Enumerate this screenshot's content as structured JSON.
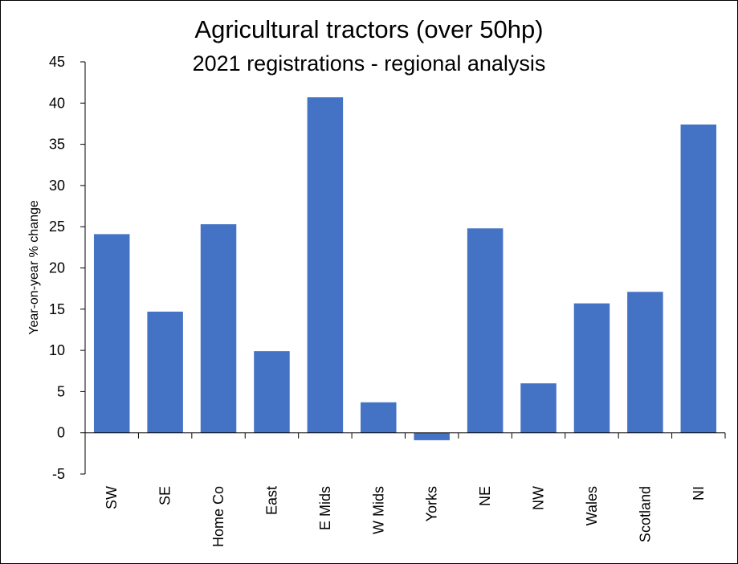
{
  "chart_data": {
    "type": "bar",
    "title": "Agricultural tractors (over 50hp)",
    "subtitle": "2021 registrations - regional analysis",
    "xlabel": "",
    "ylabel": "Year-on-year  % change",
    "categories": [
      "SW",
      "SE",
      "Home Co",
      "East",
      "E Mids",
      "W Mids",
      "Yorks",
      "NE",
      "NW",
      "Wales",
      "Scotland",
      "NI"
    ],
    "values": [
      24.1,
      14.7,
      25.3,
      9.9,
      40.7,
      3.7,
      -0.9,
      24.8,
      6.0,
      15.7,
      17.1,
      37.4
    ],
    "ylim": [
      -5,
      45
    ],
    "yticks": [
      -5,
      0,
      5,
      10,
      15,
      20,
      25,
      30,
      35,
      40,
      45
    ],
    "grid": false,
    "legend": "none",
    "bar_color": "#4472C4"
  }
}
